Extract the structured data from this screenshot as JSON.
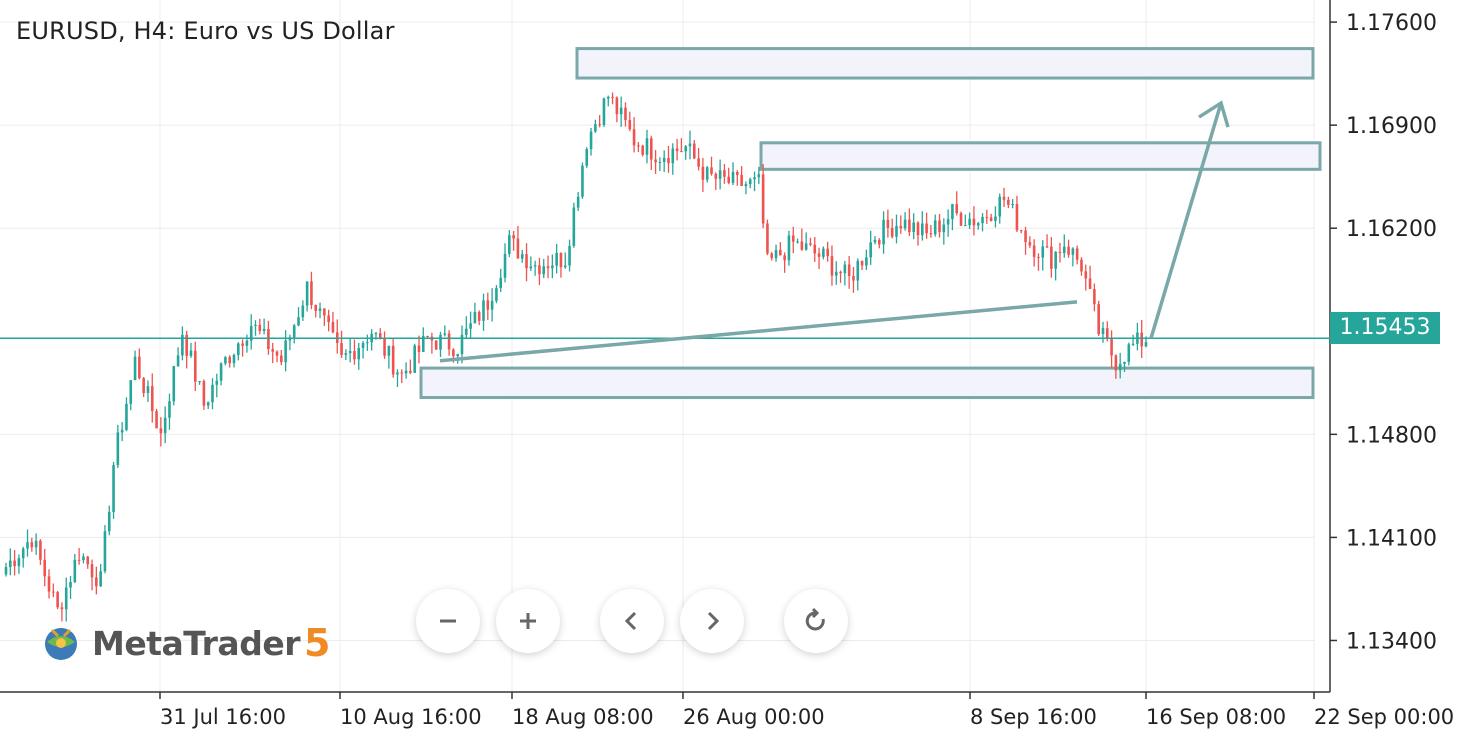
{
  "header": {
    "title": "EURUSD, H4: Euro vs US Dollar"
  },
  "price_tag": {
    "value": "1.15453",
    "color": "#26a69a"
  },
  "colors": {
    "bull": "#26a69a",
    "bear": "#ef5350",
    "zone_border": "#7aa7a7",
    "zone_fill": "#f3f3fb",
    "grid": "#ececec"
  },
  "toolbar": {
    "buttons": [
      {
        "name": "zoom-out-button",
        "icon": "minus-icon"
      },
      {
        "name": "zoom-in-button",
        "icon": "plus-icon"
      },
      {
        "name": "scroll-left-button",
        "icon": "chevron-left-icon"
      },
      {
        "name": "scroll-right-button",
        "icon": "chevron-right-icon"
      },
      {
        "name": "reset-button",
        "icon": "reset-icon"
      }
    ]
  },
  "logo": {
    "text": "MetaTrader",
    "number": "5"
  },
  "chart_data": {
    "type": "candlestick",
    "symbol": "EURUSD",
    "timeframe": "H4",
    "ylim": [
      1.1305,
      1.1775
    ],
    "y_ticks": [
      "1.17600",
      "1.16900",
      "1.16200",
      "1.14800",
      "1.14100",
      "1.13400"
    ],
    "x_ticks": [
      "31 Jul 16:00",
      "10 Aug 16:00",
      "18 Aug 08:00",
      "26 Aug 00:00",
      "8 Sep 16:00",
      "16 Sep 08:00",
      "22 Sep 00:00"
    ],
    "current_price": 1.15453,
    "anchors": [
      [
        0,
        1.139
      ],
      [
        6,
        1.141
      ],
      [
        12,
        1.136
      ],
      [
        17,
        1.14
      ],
      [
        22,
        1.138
      ],
      [
        25,
        1.146
      ],
      [
        30,
        1.153
      ],
      [
        36,
        1.148
      ],
      [
        41,
        1.155
      ],
      [
        46,
        1.15
      ],
      [
        51,
        1.153
      ],
      [
        57,
        1.1555
      ],
      [
        64,
        1.153
      ],
      [
        70,
        1.158
      ],
      [
        78,
        1.153
      ],
      [
        85,
        1.155
      ],
      [
        92,
        1.152
      ],
      [
        98,
        1.1545
      ],
      [
        105,
        1.154
      ],
      [
        112,
        1.157
      ],
      [
        117,
        1.161
      ],
      [
        123,
        1.1595
      ],
      [
        130,
        1.16
      ],
      [
        135,
        1.168
      ],
      [
        140,
        1.171
      ],
      [
        146,
        1.168
      ],
      [
        152,
        1.167
      ],
      [
        158,
        1.1675
      ],
      [
        163,
        1.1655
      ],
      [
        170,
        1.165
      ],
      [
        175,
        1.165
      ],
      [
        177,
        1.1595
      ],
      [
        183,
        1.161
      ],
      [
        190,
        1.16
      ],
      [
        196,
        1.1585
      ],
      [
        202,
        1.1615
      ],
      [
        208,
        1.1625
      ],
      [
        214,
        1.1615
      ],
      [
        220,
        1.163
      ],
      [
        226,
        1.1625
      ],
      [
        232,
        1.164
      ],
      [
        238,
        1.161
      ],
      [
        243,
        1.16
      ],
      [
        246,
        1.161
      ],
      [
        250,
        1.1595
      ],
      [
        254,
        1.155
      ],
      [
        258,
        1.153
      ],
      [
        262,
        1.154
      ],
      [
        265,
        1.1545
      ]
    ],
    "zones": [
      {
        "from": 1.1722,
        "to": 1.1742
      },
      {
        "from": 1.166,
        "to": 1.1678
      },
      {
        "from": 1.1505,
        "to": 1.1525
      }
    ],
    "trendline": {
      "from": [
        1.153
      ],
      "to": [
        1.157
      ]
    },
    "projection_arrow": {
      "from": 1.15453,
      "to": 1.1705
    }
  }
}
